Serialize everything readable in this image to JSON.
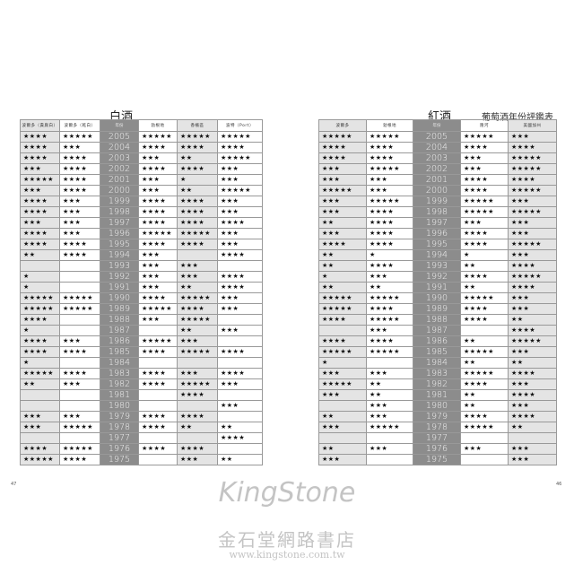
{
  "left": {
    "title": "白酒",
    "headers": [
      "波爾多（貴腐白）",
      "波爾多（乾白）",
      "年份",
      "勃根地",
      "香檳區",
      "波特（Port）"
    ],
    "rows": [
      [
        "2005",
        4,
        5,
        5,
        5,
        5
      ],
      [
        "2004",
        4,
        3,
        4,
        4,
        4
      ],
      [
        "2003",
        4,
        4,
        3,
        2,
        5
      ],
      [
        "2002",
        3,
        4,
        4,
        4,
        3
      ],
      [
        "2001",
        5,
        4,
        3,
        1,
        3
      ],
      [
        "2000",
        3,
        4,
        3,
        2,
        5
      ],
      [
        "1999",
        4,
        3,
        4,
        4,
        3
      ],
      [
        "1998",
        4,
        3,
        4,
        4,
        3
      ],
      [
        "1997",
        3,
        3,
        4,
        4,
        4
      ],
      [
        "1996",
        4,
        3,
        5,
        5,
        3
      ],
      [
        "1995",
        4,
        4,
        4,
        4,
        3
      ],
      [
        "1994",
        2,
        4,
        3,
        0,
        4
      ],
      [
        "1993",
        0,
        0,
        3,
        3,
        0
      ],
      [
        "1992",
        1,
        0,
        3,
        3,
        4
      ],
      [
        "1991",
        1,
        0,
        3,
        2,
        4
      ],
      [
        "1990",
        5,
        5,
        4,
        5,
        3
      ],
      [
        "1989",
        5,
        5,
        5,
        4,
        3
      ],
      [
        "1988",
        4,
        0,
        3,
        5,
        0
      ],
      [
        "1987",
        1,
        0,
        0,
        2,
        3
      ],
      [
        "1986",
        4,
        3,
        5,
        3,
        0
      ],
      [
        "1985",
        4,
        4,
        4,
        5,
        4
      ],
      [
        "1984",
        1,
        0,
        0,
        0,
        0
      ],
      [
        "1983",
        5,
        4,
        4,
        3,
        4
      ],
      [
        "1982",
        2,
        3,
        4,
        5,
        3
      ],
      [
        "1981",
        0,
        0,
        0,
        4,
        0
      ],
      [
        "1980",
        0,
        0,
        0,
        0,
        3
      ],
      [
        "1979",
        3,
        3,
        4,
        4,
        0
      ],
      [
        "1978",
        3,
        5,
        4,
        2,
        2
      ],
      [
        "1977",
        0,
        0,
        0,
        0,
        4
      ],
      [
        "1976",
        4,
        5,
        4,
        4,
        0
      ],
      [
        "1975",
        5,
        4,
        0,
        3,
        2
      ]
    ]
  },
  "right": {
    "title": "紅酒",
    "subtitle": "葡萄酒年份評鑑表",
    "headers": [
      "波爾多",
      "勃根地",
      "年份",
      "隆河",
      "美國加州"
    ],
    "rows": [
      [
        "2005",
        5,
        5,
        5,
        3
      ],
      [
        "2004",
        4,
        4,
        4,
        4
      ],
      [
        "2003",
        4,
        4,
        3,
        5
      ],
      [
        "2002",
        3,
        5,
        3,
        5
      ],
      [
        "2001",
        3,
        3,
        4,
        4
      ],
      [
        "2000",
        5,
        3,
        4,
        5
      ],
      [
        "1999",
        3,
        5,
        5,
        3
      ],
      [
        "1998",
        3,
        4,
        5,
        5
      ],
      [
        "1997",
        2,
        4,
        3,
        3
      ],
      [
        "1996",
        3,
        4,
        4,
        3
      ],
      [
        "1995",
        4,
        4,
        4,
        5
      ],
      [
        "1994",
        2,
        1,
        1,
        3
      ],
      [
        "1993",
        2,
        4,
        2,
        4
      ],
      [
        "1992",
        1,
        3,
        4,
        5
      ],
      [
        "1991",
        2,
        2,
        2,
        4
      ],
      [
        "1990",
        5,
        5,
        5,
        3
      ],
      [
        "1989",
        5,
        4,
        4,
        3
      ],
      [
        "1988",
        4,
        5,
        4,
        2
      ],
      [
        "1987",
        0,
        3,
        0,
        4
      ],
      [
        "1986",
        4,
        4,
        2,
        5
      ],
      [
        "1985",
        5,
        5,
        5,
        3
      ],
      [
        "1984",
        1,
        0,
        2,
        2
      ],
      [
        "1983",
        3,
        3,
        5,
        4
      ],
      [
        "1982",
        5,
        2,
        4,
        3
      ],
      [
        "1981",
        3,
        2,
        2,
        4
      ],
      [
        "1980",
        0,
        3,
        2,
        3
      ],
      [
        "1979",
        2,
        3,
        4,
        4
      ],
      [
        "1978",
        3,
        5,
        5,
        2
      ],
      [
        "1977",
        0,
        0,
        0,
        0
      ],
      [
        "1976",
        2,
        3,
        3,
        3
      ],
      [
        "1975",
        3,
        0,
        0,
        3
      ]
    ]
  },
  "rating_icon": "star-icon",
  "page_numbers": {
    "left": "47",
    "right": "46"
  },
  "watermark": {
    "brand": "KingStone",
    "name_zh": "金石堂網路書店",
    "url": "www.kingstone.com.tw"
  }
}
